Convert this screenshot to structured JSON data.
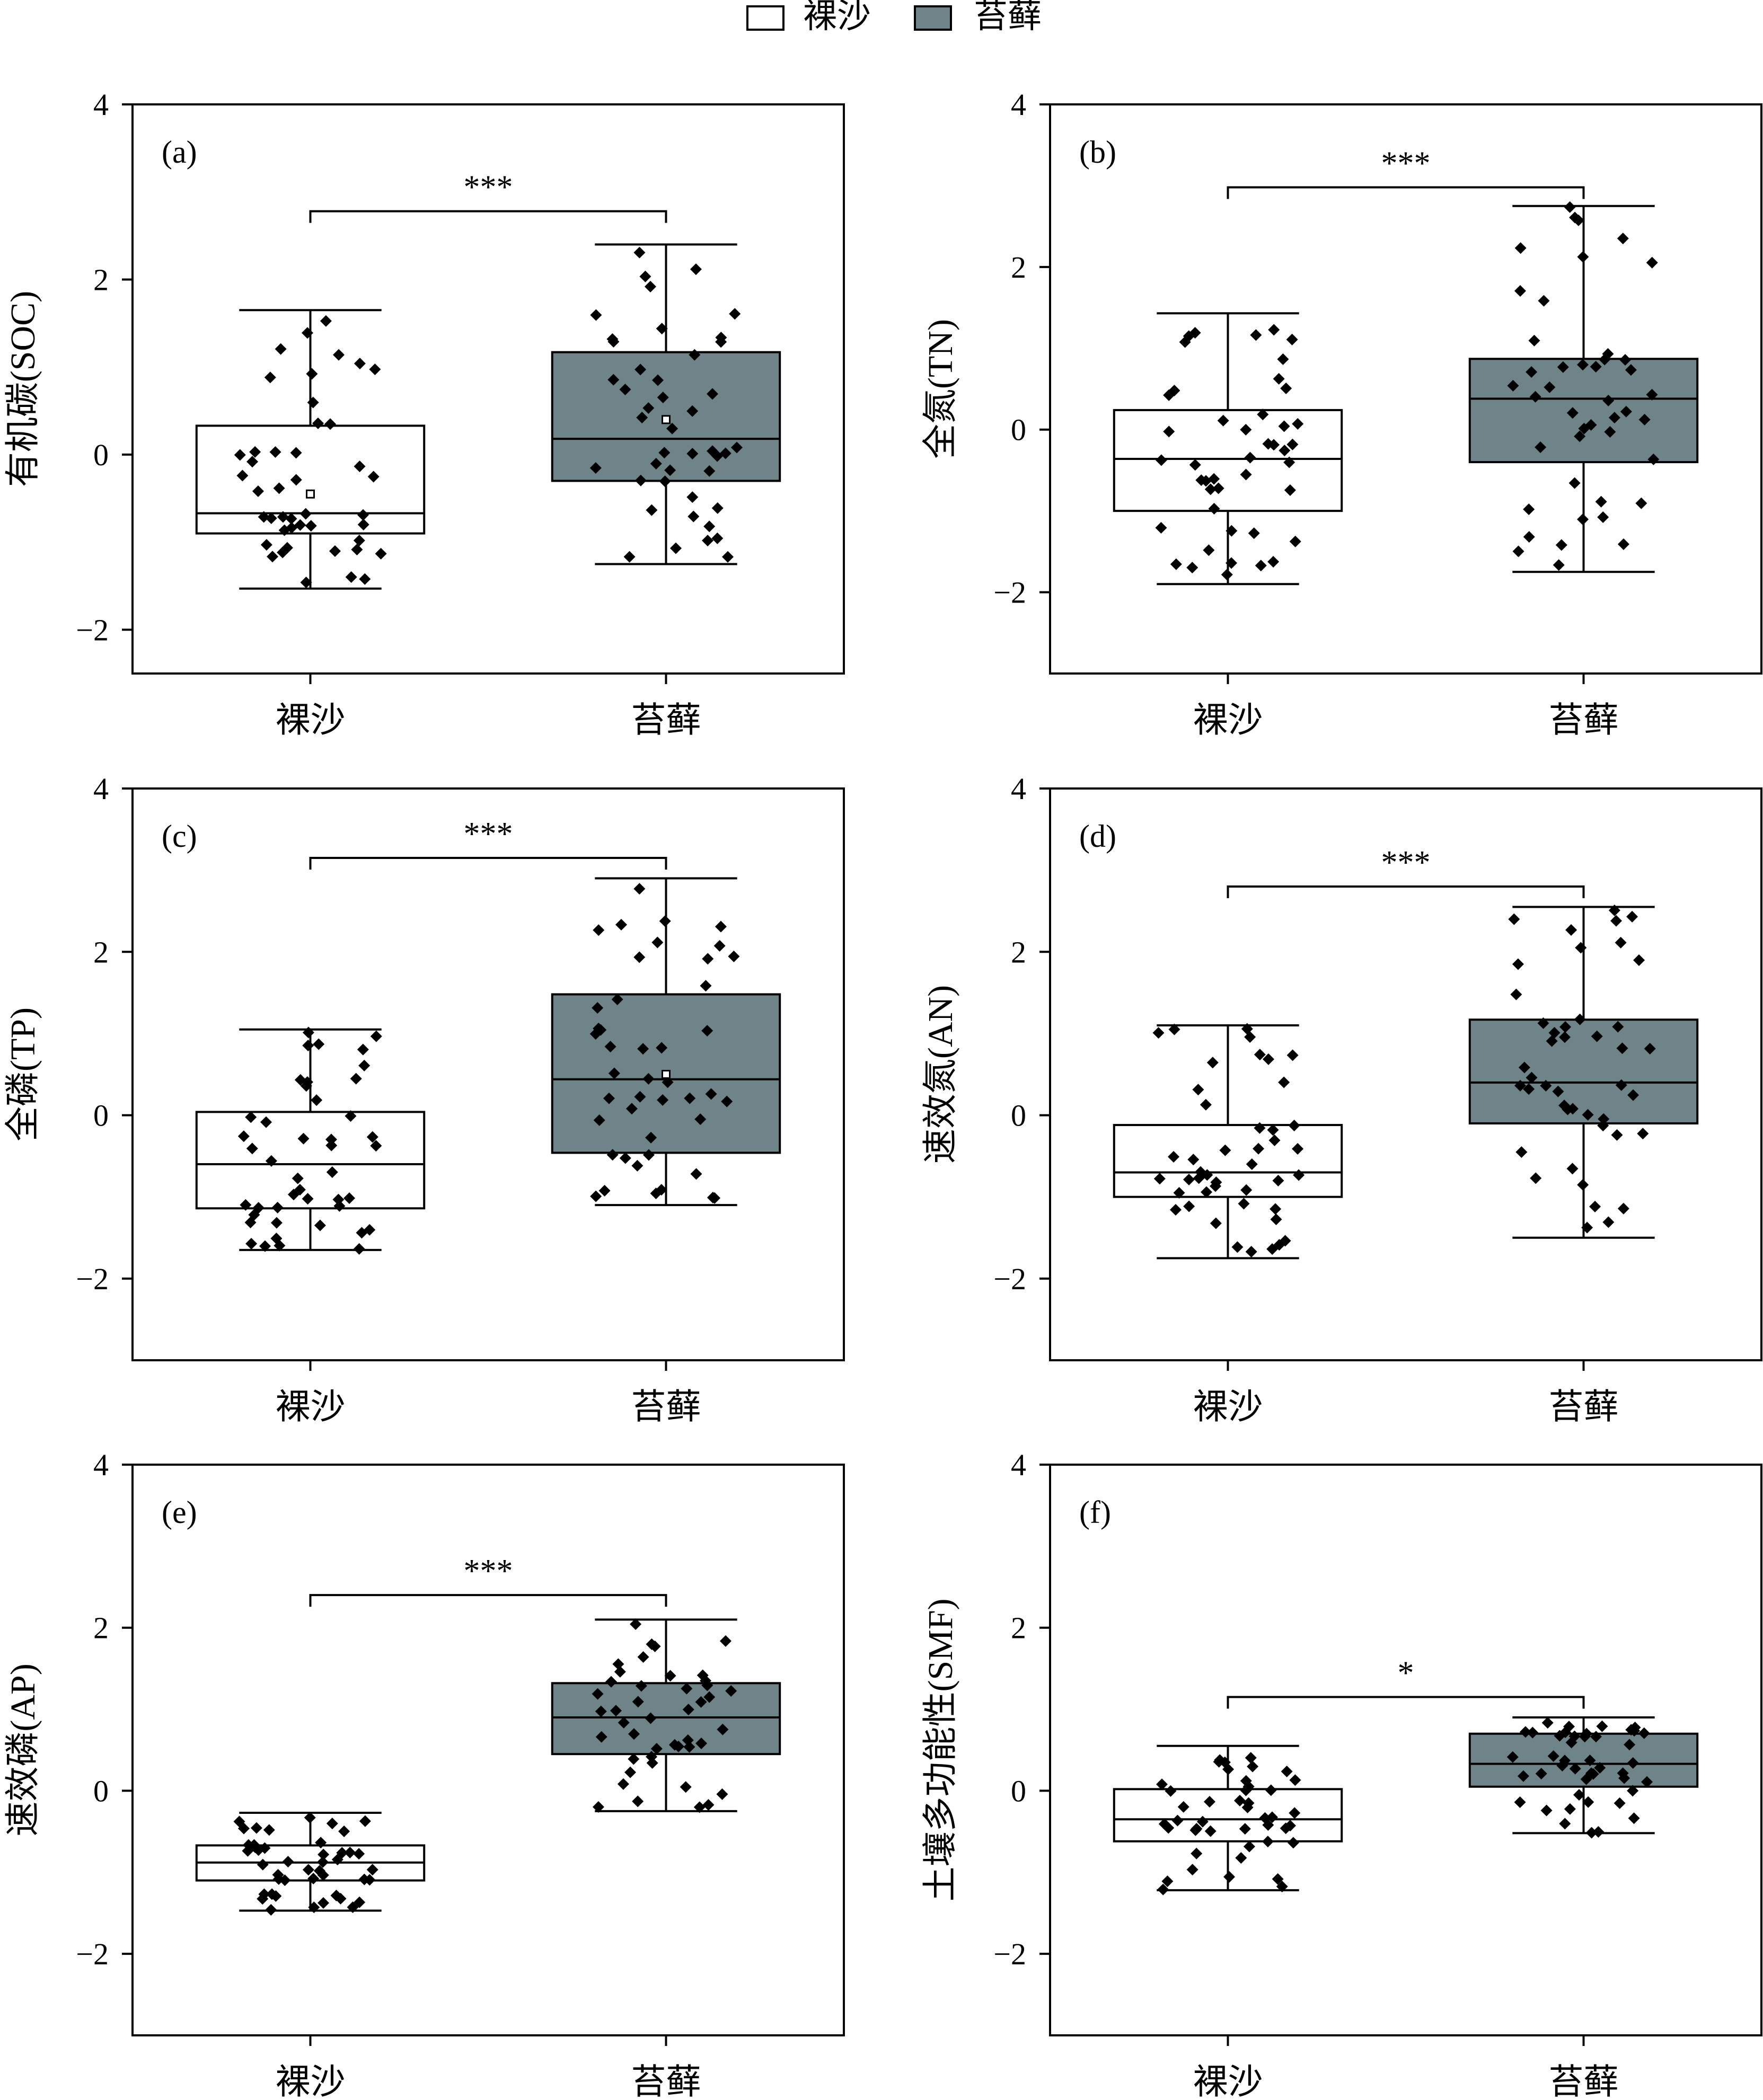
{
  "legend": {
    "items": [
      {
        "label": "裸沙",
        "color": "#ffffff"
      },
      {
        "label": "苔藓",
        "color": "#6f8489"
      }
    ]
  },
  "chart_data": [
    {
      "type": "box",
      "panel": "(a)",
      "ylabel": "有机碳(SOC)",
      "ylim": [
        -2.5,
        4
      ],
      "yticks": [
        -2,
        0,
        2,
        4
      ],
      "categories": [
        "裸沙",
        "苔藓"
      ],
      "boxes": [
        {
          "low": -1.53,
          "q1": -0.9,
          "median": -0.67,
          "q3": 0.33,
          "high": 1.65,
          "mean": -0.45
        },
        {
          "low": -1.25,
          "q1": -0.3,
          "median": 0.18,
          "q3": 1.17,
          "high": 2.4,
          "mean": 0.4
        }
      ],
      "significance": {
        "label": "***",
        "level": 2.78
      }
    },
    {
      "type": "box",
      "panel": "(b)",
      "ylabel": "全氮(TN)",
      "ylim": [
        -3,
        4
      ],
      "yticks": [
        -2,
        0,
        2,
        4
      ],
      "categories": [
        "裸沙",
        "苔藓"
      ],
      "boxes": [
        {
          "low": -1.9,
          "q1": -1.0,
          "median": -0.36,
          "q3": 0.24,
          "high": 1.43
        },
        {
          "low": -1.75,
          "q1": -0.4,
          "median": 0.38,
          "q3": 0.87,
          "high": 2.75
        }
      ],
      "significance": {
        "label": "***",
        "level": 2.98
      }
    },
    {
      "type": "box",
      "panel": "(c)",
      "ylabel": "全磷(TP)",
      "ylim": [
        -3,
        4
      ],
      "yticks": [
        -2,
        0,
        2,
        4
      ],
      "categories": [
        "裸沙",
        "苔藓"
      ],
      "boxes": [
        {
          "low": -1.65,
          "q1": -1.14,
          "median": -0.6,
          "q3": 0.04,
          "high": 1.05
        },
        {
          "low": -1.1,
          "q1": -0.46,
          "median": 0.44,
          "q3": 1.48,
          "high": 2.9,
          "mean": 0.5
        }
      ],
      "significance": {
        "label": "***",
        "level": 3.15
      }
    },
    {
      "type": "box",
      "panel": "(d)",
      "ylabel": "速效氮(AN)",
      "ylim": [
        -3,
        4
      ],
      "yticks": [
        -2,
        0,
        2,
        4
      ],
      "categories": [
        "裸沙",
        "苔藓"
      ],
      "boxes": [
        {
          "low": -1.75,
          "q1": -1.0,
          "median": -0.7,
          "q3": -0.12,
          "high": 1.1
        },
        {
          "low": -1.5,
          "q1": -0.1,
          "median": 0.4,
          "q3": 1.17,
          "high": 2.55
        }
      ],
      "significance": {
        "label": "***",
        "level": 2.8
      }
    },
    {
      "type": "box",
      "panel": "(e)",
      "ylabel": "速效磷(AP)",
      "ylim": [
        -3,
        4
      ],
      "yticks": [
        -2,
        0,
        2,
        4
      ],
      "categories": [
        "裸沙",
        "苔藓"
      ],
      "boxes": [
        {
          "low": -1.47,
          "q1": -1.1,
          "median": -0.88,
          "q3": -0.67,
          "high": -0.27
        },
        {
          "low": -0.25,
          "q1": 0.45,
          "median": 0.9,
          "q3": 1.32,
          "high": 2.1
        }
      ],
      "significance": {
        "label": "***",
        "level": 2.4
      }
    },
    {
      "type": "box",
      "panel": "(f)",
      "ylabel": "土壤多功能性(SMF)",
      "ylim": [
        -3,
        4
      ],
      "yticks": [
        -2,
        0,
        2,
        4
      ],
      "categories": [
        "裸沙",
        "苔藓"
      ],
      "boxes": [
        {
          "low": -1.22,
          "q1": -0.62,
          "median": -0.35,
          "q3": 0.02,
          "high": 0.55
        },
        {
          "low": -0.52,
          "q1": 0.05,
          "median": 0.33,
          "q3": 0.7,
          "high": 0.9
        }
      ],
      "significance": {
        "label": "*",
        "level": 1.15
      }
    }
  ]
}
